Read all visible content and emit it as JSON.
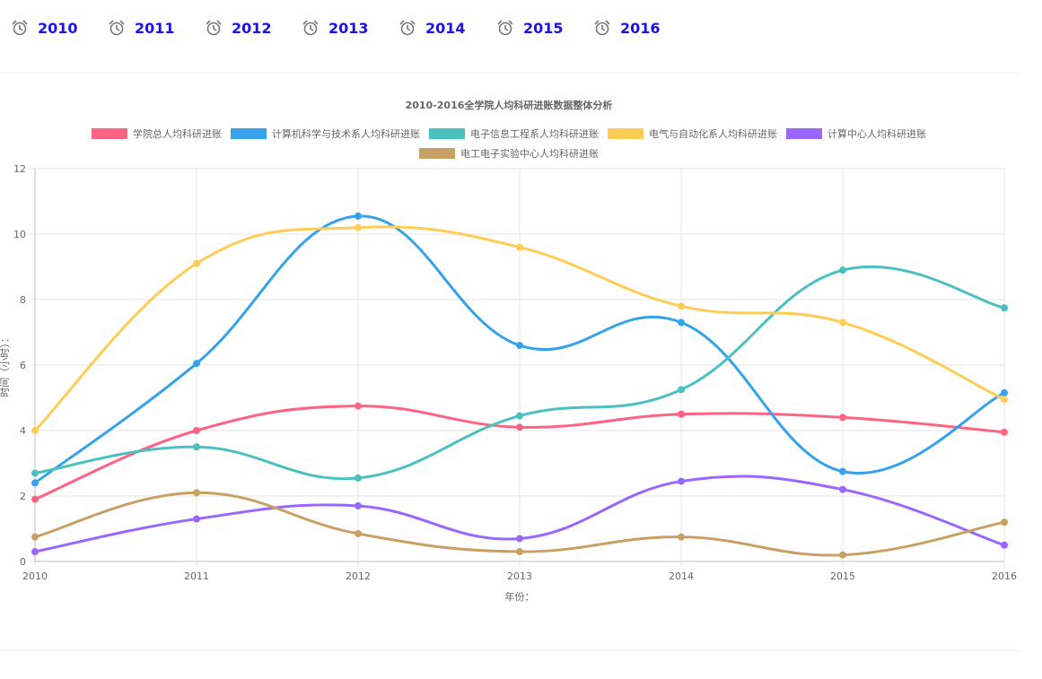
{
  "years": [
    {
      "label": "2010",
      "icon": "alarm-clock-icon"
    },
    {
      "label": "2011",
      "icon": "alarm-clock-icon"
    },
    {
      "label": "2012",
      "icon": "alarm-clock-icon"
    },
    {
      "label": "2013",
      "icon": "alarm-clock-icon"
    },
    {
      "label": "2014",
      "icon": "alarm-clock-icon"
    },
    {
      "label": "2015",
      "icon": "alarm-clock-icon"
    },
    {
      "label": "2016",
      "icon": "alarm-clock-icon"
    }
  ],
  "colors": {
    "year_link": "#1a12e6",
    "icon": "#777777"
  },
  "chart_data": {
    "type": "line",
    "title": "2010-2016全学院人均科研进账数据整体分析",
    "xlabel": "年份：",
    "ylabel": "时间（小时）：",
    "x": [
      "2010",
      "2011",
      "2012",
      "2013",
      "2014",
      "2015",
      "2016"
    ],
    "ylim": [
      0,
      12
    ],
    "yticks": [
      0,
      2,
      4,
      6,
      8,
      10,
      12
    ],
    "grid": true,
    "smooth": true,
    "legend_position": "top",
    "series": [
      {
        "name": "学院总人均科研进账",
        "color": "#ff6384",
        "values": [
          1.9,
          4.0,
          4.75,
          4.1,
          4.5,
          4.4,
          3.95
        ]
      },
      {
        "name": "计算机科学与技术系人均科研进账",
        "color": "#36a2eb",
        "values": [
          2.4,
          6.05,
          10.55,
          6.6,
          7.3,
          2.75,
          5.15
        ]
      },
      {
        "name": "电子信息工程系人均科研进账",
        "color": "#4bc0c0",
        "values": [
          2.7,
          3.5,
          2.55,
          4.45,
          5.25,
          8.9,
          7.75
        ]
      },
      {
        "name": "电气与自动化系人均科研进账",
        "color": "#ffcd56",
        "values": [
          4.0,
          9.1,
          10.2,
          9.6,
          7.8,
          7.3,
          4.95
        ]
      },
      {
        "name": "计算中心人均科研进账",
        "color": "#9966ff",
        "values": [
          0.3,
          1.3,
          1.7,
          0.7,
          2.45,
          2.2,
          0.5
        ]
      },
      {
        "name": "电工电子实验中心人均科研进账",
        "color": "#c9a063",
        "values": [
          0.75,
          2.1,
          0.85,
          0.3,
          0.75,
          0.2,
          1.2
        ]
      }
    ]
  }
}
